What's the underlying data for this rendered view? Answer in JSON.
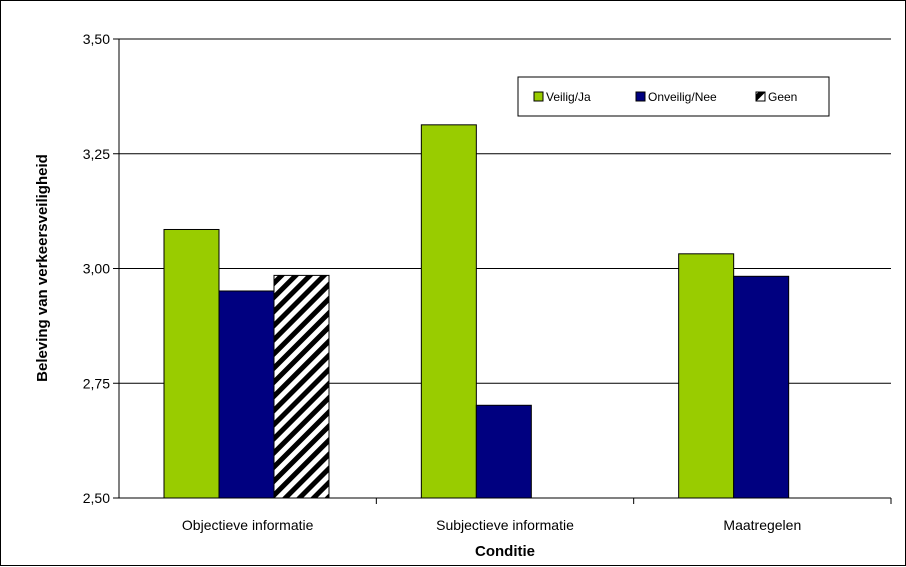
{
  "chart_data": {
    "type": "bar",
    "title": "",
    "xlabel": "Conditie",
    "ylabel": "Beleving van verkeersveiligheid",
    "categories": [
      "Objectieve informatie",
      "Subjectieve informatie",
      "Maatregelen"
    ],
    "ylim": [
      2.5,
      3.5
    ],
    "yticks": [
      "2,50",
      "2,75",
      "3,00",
      "3,25",
      "3,50"
    ],
    "ytick_values": [
      2.5,
      2.75,
      3.0,
      3.25,
      3.5
    ],
    "grid": true,
    "legend_position": "top-right",
    "series": [
      {
        "name": "Veilig/Ja",
        "color": "#99cc00",
        "pattern": "solid",
        "values": [
          3.085,
          3.313,
          3.032
        ]
      },
      {
        "name": "Onveilig/Nee",
        "color": "#000080",
        "pattern": "solid",
        "values": [
          2.951,
          2.702,
          2.983
        ]
      },
      {
        "name": "Geen",
        "color": "#000000",
        "pattern": "diagonal-stripes",
        "values": [
          2.985,
          null,
          null
        ]
      }
    ]
  }
}
